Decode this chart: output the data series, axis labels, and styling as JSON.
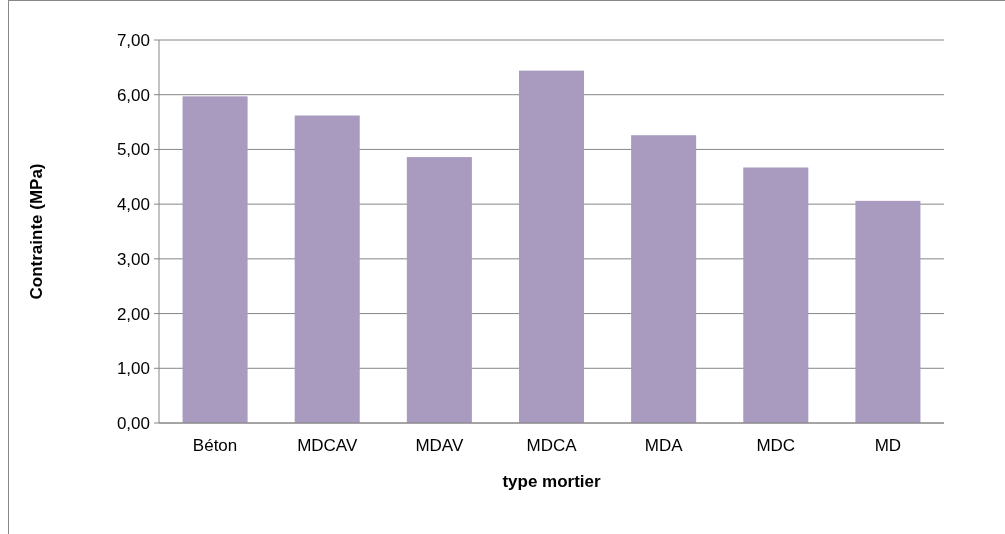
{
  "chart_data": {
    "type": "bar",
    "xlabel": "type mortier",
    "ylabel": "Contrainte (MPa)",
    "categories": [
      "Béton",
      "MDCAV",
      "MDAV",
      "MDCA",
      "MDA",
      "MDC",
      "MD"
    ],
    "values": [
      5.97,
      5.62,
      4.86,
      6.44,
      5.26,
      4.67,
      4.06
    ],
    "color": "#a89bbf",
    "ylim": [
      0,
      7
    ],
    "yticks": [
      {
        "value": 0,
        "label": "0,00"
      },
      {
        "value": 1,
        "label": "1,00"
      },
      {
        "value": 2,
        "label": "2,00"
      },
      {
        "value": 3,
        "label": "3,00"
      },
      {
        "value": 4,
        "label": "4,00"
      },
      {
        "value": 5,
        "label": "5,00"
      },
      {
        "value": 6,
        "label": "6,00"
      },
      {
        "value": 7,
        "label": "7,00"
      }
    ],
    "grid": "y"
  }
}
